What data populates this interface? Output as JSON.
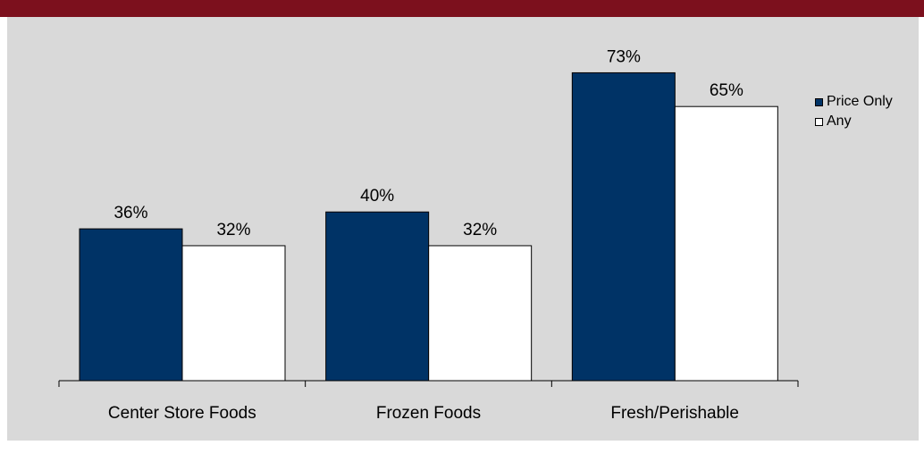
{
  "header": {
    "title": ""
  },
  "colors": {
    "header_bg": "#7c101d",
    "plot_bg": "#d9d9d9",
    "price_only": "#003366",
    "any": "#ffffff"
  },
  "chart_data": {
    "type": "bar",
    "title": "",
    "xlabel": "",
    "ylabel": "",
    "categories": [
      "Center Store Foods",
      "Frozen Foods",
      "Fresh/Perishable"
    ],
    "series": [
      {
        "name": "Price Only",
        "values": [
          36,
          40,
          73
        ],
        "labels": [
          "36%",
          "40%",
          "73%"
        ]
      },
      {
        "name": "Any",
        "values": [
          32,
          32,
          65
        ],
        "labels": [
          "32%",
          "32%",
          "65%"
        ]
      }
    ],
    "ylim": [
      0,
      80
    ],
    "grid": false,
    "legend": "right"
  }
}
